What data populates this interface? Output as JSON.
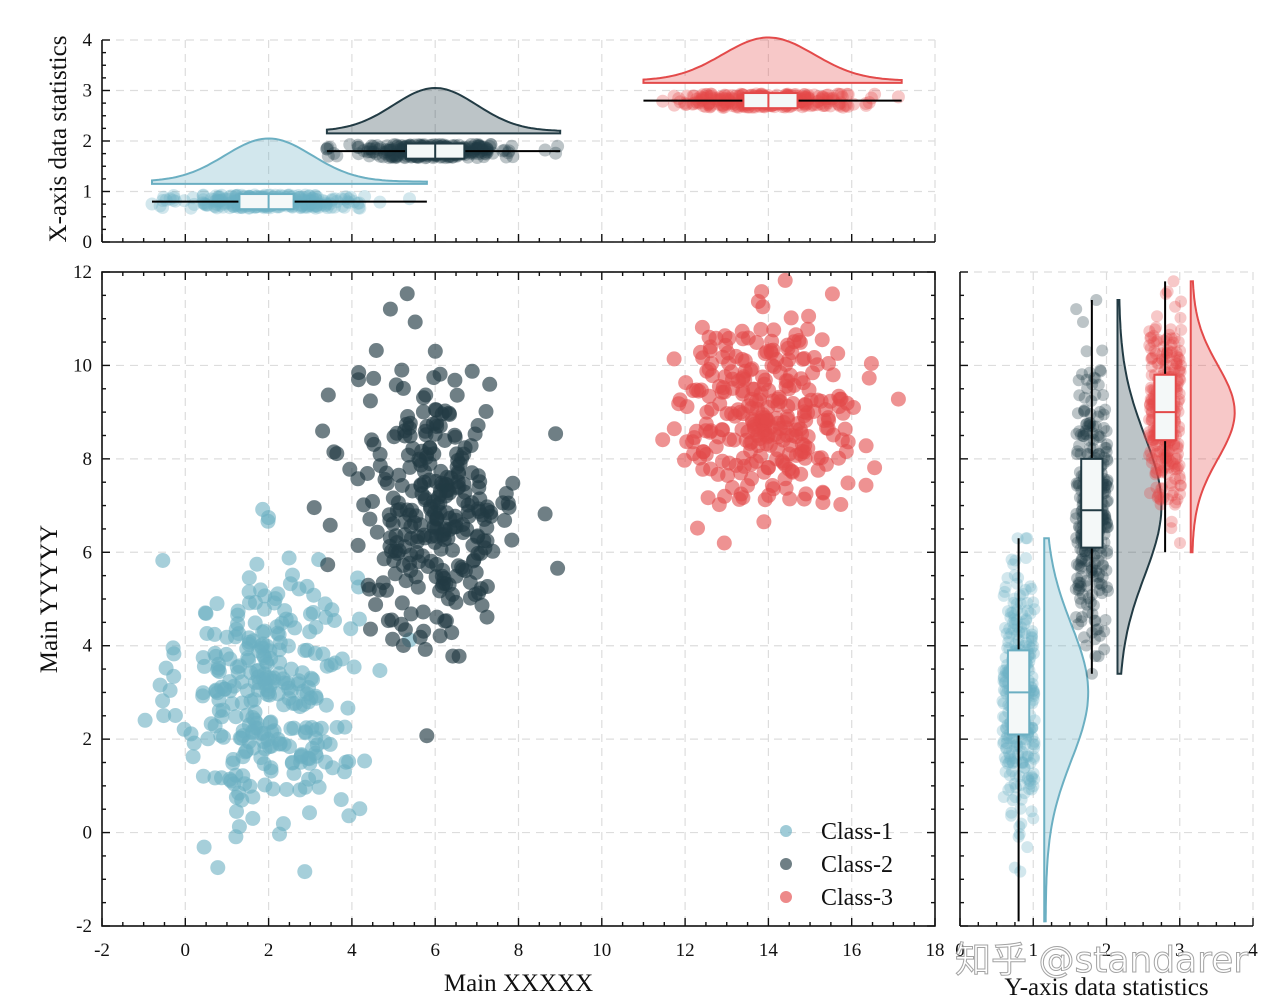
{
  "chart_data": {
    "type": "scatter",
    "classes": [
      {
        "name": "Class-1",
        "color": "#6BAFC2",
        "x_center": 2.0,
        "x_spread": 1.05,
        "y_center": 3.0,
        "y_spread": 1.45,
        "count": 300
      },
      {
        "name": "Class-2",
        "color": "#223B44",
        "x_center": 6.0,
        "x_spread": 1.0,
        "y_center": 7.0,
        "y_spread": 1.5,
        "count": 300
      },
      {
        "name": "Class-3",
        "color": "#E34A4A",
        "x_center": 14.0,
        "x_spread": 1.1,
        "y_center": 9.0,
        "y_spread": 1.0,
        "count": 300
      }
    ],
    "main": {
      "xlabel": "Main XXXXX",
      "ylabel": "Main YYYYY",
      "xlim": [
        -2,
        18
      ],
      "ylim": [
        -2,
        12
      ],
      "xticks": [
        "-2",
        "0",
        "2",
        "4",
        "6",
        "8",
        "10",
        "12",
        "14",
        "16",
        "18"
      ],
      "yticks": [
        "-2",
        "0",
        "2",
        "4",
        "6",
        "8",
        "10",
        "12"
      ],
      "grid": true,
      "legend_position": "bottom-right"
    },
    "top": {
      "ylabel": "X-axis data statistics",
      "ylim": [
        0,
        4
      ],
      "yticks": [
        "0",
        "1",
        "2",
        "3",
        "4"
      ],
      "class_positions": [
        1,
        2,
        3
      ],
      "box_stats": [
        {
          "q1": 1.3,
          "median": 2.0,
          "q3": 2.6,
          "whisker_low": -0.8,
          "whisker_high": 5.8
        },
        {
          "q1": 5.3,
          "median": 6.0,
          "q3": 6.7,
          "whisker_low": 3.4,
          "whisker_high": 9.0
        },
        {
          "q1": 13.4,
          "median": 14.0,
          "q3": 14.7,
          "whisker_low": 11.0,
          "whisker_high": 17.2
        }
      ]
    },
    "right": {
      "xlabel": "Y-axis data statistics",
      "xlim": [
        0,
        4
      ],
      "xticks": [
        "0",
        "1",
        "2",
        "3",
        "4"
      ],
      "class_positions": [
        1,
        2,
        3
      ],
      "box_stats": [
        {
          "q1": 2.1,
          "median": 3.0,
          "q3": 3.9,
          "whisker_low": -1.9,
          "whisker_high": 6.3
        },
        {
          "q1": 6.1,
          "median": 6.9,
          "q3": 8.0,
          "whisker_low": 3.4,
          "whisker_high": 11.4
        },
        {
          "q1": 8.4,
          "median": 9.0,
          "q3": 9.8,
          "whisker_low": 6.0,
          "whisker_high": 11.8
        }
      ]
    }
  },
  "watermark": "知乎 @standarer"
}
